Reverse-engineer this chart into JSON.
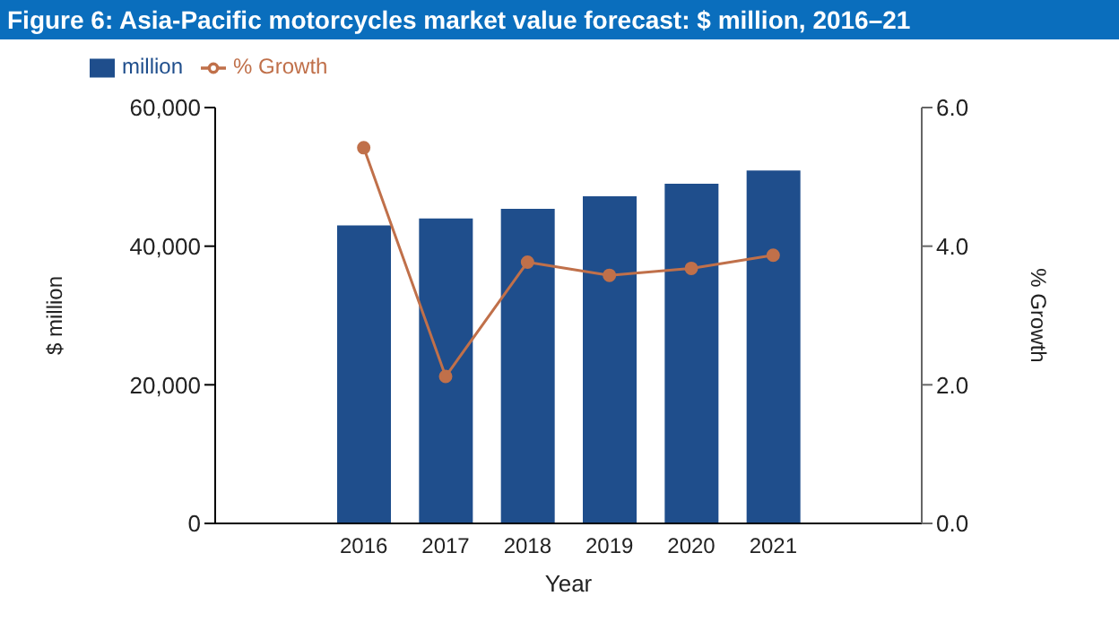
{
  "chart_data": {
    "type": "bar",
    "title": "Figure 6: Asia-Pacific motorcycles market value forecast: $ million, 2016–21",
    "categories": [
      "2016",
      "2017",
      "2018",
      "2019",
      "2020",
      "2021"
    ],
    "series": [
      {
        "name": "million",
        "color": "#1f4e8c",
        "values": [
          43000,
          44000,
          45400,
          47200,
          49000,
          50900
        ]
      },
      {
        "name": "% Growth",
        "type": "line",
        "axis": "y2",
        "color": "#c0704a",
        "values": [
          5.42,
          2.12,
          3.77,
          3.58,
          3.68,
          3.87
        ]
      }
    ],
    "xlabel": "Year",
    "ylabel": "$ million",
    "y2label": "% Growth",
    "ylim": [
      0,
      60000
    ],
    "yticks": [
      0,
      {
        "value": 20000,
        "label": "20,000"
      },
      {
        "value": 40000,
        "label": "40,000"
      },
      {
        "value": 60000,
        "label": "60,000"
      }
    ],
    "y2lim": [
      0,
      6
    ],
    "y2ticks": [
      {
        "value": 0,
        "label": "0.0"
      },
      {
        "value": 2,
        "label": "2.0"
      },
      {
        "value": 4,
        "label": "4.0"
      },
      {
        "value": 6,
        "label": "6.0"
      }
    ],
    "legend": "top left",
    "grid": false,
    "marker": "circle",
    "line_style": "solid"
  }
}
